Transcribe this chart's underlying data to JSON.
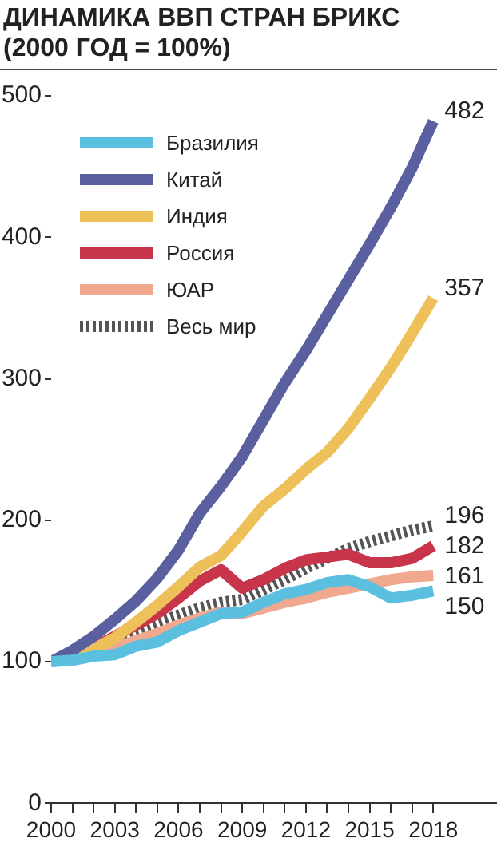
{
  "chart_data": {
    "type": "line",
    "title": "ДИНАМИКА ВВП СТРАН БРИКС",
    "subtitle": "(2000 ГОД = 100%)",
    "x": [
      2000,
      2001,
      2002,
      2003,
      2004,
      2005,
      2006,
      2007,
      2008,
      2009,
      2010,
      2011,
      2012,
      2013,
      2014,
      2015,
      2016,
      2017,
      2018
    ],
    "xlim": [
      2000,
      2021
    ],
    "xticks": [
      {
        "value": 2000,
        "label": "2000"
      },
      {
        "value": 2001,
        "label": null
      },
      {
        "value": 2002,
        "label": null
      },
      {
        "value": 2003,
        "label": "2003"
      },
      {
        "value": 2004,
        "label": null
      },
      {
        "value": 2005,
        "label": null
      },
      {
        "value": 2006,
        "label": "2006"
      },
      {
        "value": 2007,
        "label": null
      },
      {
        "value": 2008,
        "label": null
      },
      {
        "value": 2009,
        "label": "2009"
      },
      {
        "value": 2010,
        "label": null
      },
      {
        "value": 2011,
        "label": null
      },
      {
        "value": 2012,
        "label": "2012"
      },
      {
        "value": 2013,
        "label": null
      },
      {
        "value": 2014,
        "label": null
      },
      {
        "value": 2015,
        "label": "2015"
      },
      {
        "value": 2016,
        "label": null
      },
      {
        "value": 2017,
        "label": null
      },
      {
        "value": 2018,
        "label": "2018"
      }
    ],
    "ylim": [
      0,
      500
    ],
    "yticks": [
      0,
      100,
      200,
      300,
      400,
      500
    ],
    "grid": false,
    "legend": "top left",
    "marker": "none",
    "series": [
      {
        "name": "Бразилия",
        "color": "#5bc0e0",
        "values": [
          100,
          101,
          104,
          105,
          111,
          114,
          122,
          128,
          134,
          135,
          142,
          148,
          151,
          156,
          158,
          153,
          145,
          147,
          150
        ],
        "value_labels": [
          null,
          null,
          null,
          null,
          null,
          null,
          null,
          null,
          null,
          null,
          null,
          null,
          null,
          null,
          null,
          null,
          null,
          null,
          "150"
        ]
      },
      {
        "name": "Китай",
        "color": "#5a5fa0",
        "values": [
          100,
          108,
          118,
          130,
          143,
          159,
          179,
          205,
          224,
          245,
          271,
          297,
          320,
          345,
          370,
          395,
          421,
          449,
          482
        ],
        "value_labels": [
          null,
          null,
          null,
          null,
          null,
          null,
          null,
          null,
          null,
          null,
          null,
          null,
          null,
          null,
          null,
          null,
          null,
          null,
          "482"
        ]
      },
      {
        "name": "Индия",
        "color": "#eec05a",
        "values": [
          100,
          104,
          109,
          117,
          128,
          140,
          153,
          167,
          175,
          192,
          210,
          222,
          236,
          248,
          265,
          286,
          308,
          332,
          357
        ],
        "value_labels": [
          null,
          null,
          null,
          null,
          null,
          null,
          null,
          null,
          null,
          null,
          null,
          null,
          null,
          null,
          null,
          null,
          null,
          null,
          "357"
        ]
      },
      {
        "name": "Россия",
        "color": "#c8344a",
        "values": [
          100,
          105,
          110,
          118,
          126,
          134,
          145,
          157,
          165,
          152,
          158,
          166,
          172,
          174,
          176,
          170,
          170,
          173,
          182
        ],
        "value_labels": [
          null,
          null,
          null,
          null,
          null,
          null,
          null,
          null,
          null,
          null,
          null,
          null,
          null,
          null,
          null,
          null,
          null,
          null,
          "182"
        ]
      },
      {
        "name": "ЮАР",
        "color": "#f0a88e",
        "values": [
          100,
          103,
          107,
          110,
          115,
          120,
          126,
          131,
          135,
          134,
          138,
          142,
          145,
          149,
          152,
          155,
          158,
          160,
          161
        ],
        "value_labels": [
          null,
          null,
          null,
          null,
          null,
          null,
          null,
          null,
          null,
          null,
          null,
          null,
          null,
          null,
          null,
          null,
          null,
          null,
          "161"
        ]
      },
      {
        "name": "Весь мир",
        "color": "#555555",
        "line_style": "dotted",
        "values": [
          100,
          104,
          110,
          117,
          123,
          128,
          133,
          138,
          142,
          144,
          151,
          158,
          166,
          173,
          180,
          185,
          189,
          193,
          196
        ],
        "value_labels": [
          null,
          null,
          null,
          null,
          null,
          null,
          null,
          null,
          null,
          null,
          null,
          null,
          null,
          null,
          null,
          null,
          null,
          null,
          "196"
        ]
      }
    ]
  }
}
